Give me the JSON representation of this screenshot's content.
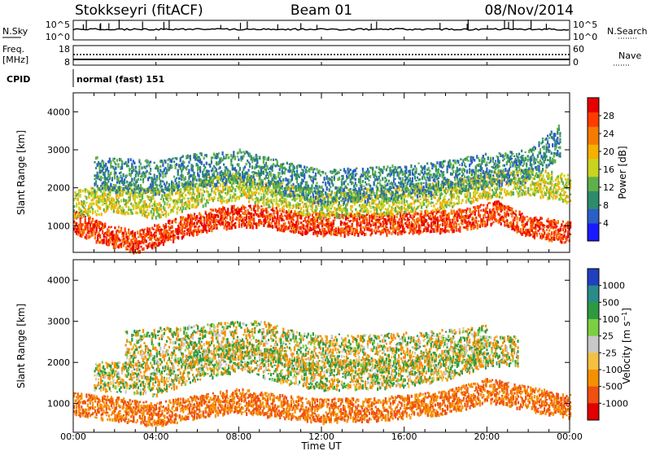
{
  "header": {
    "station": "Stokkseyri (fitACF)",
    "beam": "Beam 01",
    "date": "08/Nov/2014"
  },
  "top_panels": {
    "nsky_label": "N.Sky",
    "nsky_tick_top": "10^5",
    "nsky_tick_bottom": "10^0",
    "nsearch_label": "N.Search",
    "nsearch_tick_top": "10^5",
    "nsearch_tick_bottom": "10^0",
    "freq_label_line1": "Freq.",
    "freq_label_line2": "[MHz]",
    "freq_tick_top": "18",
    "freq_tick_bottom": "8",
    "nave_label": "Nave",
    "nave_tick_top": "60",
    "nave_tick_bottom": "0",
    "cpid_label": "CPID",
    "cpid_value": "normal (fast) 151"
  },
  "chart_data": [
    {
      "type": "heatmap",
      "name": "Power",
      "ylabel": "Slant Range [km]",
      "ylim": [
        300,
        4500
      ],
      "yticks": [
        1000,
        2000,
        3000,
        4000
      ],
      "xlim": [
        0,
        24
      ],
      "colorbar": {
        "label": "Power [dB]",
        "ticks": [
          4,
          8,
          12,
          16,
          20,
          24,
          28
        ],
        "range": [
          0,
          32
        ],
        "colors": [
          "#1a1aff",
          "#2a5fc8",
          "#2e8c6a",
          "#5fb04a",
          "#c8d420",
          "#f5b000",
          "#f57a00",
          "#ff3c00",
          "#e60000"
        ]
      },
      "echo_bands": [
        {
          "points": [
            [
              0.0,
              1150
            ],
            [
              1.5,
              800
            ],
            [
              3.0,
              600
            ],
            [
              5.0,
              950
            ],
            [
              7.0,
              1250
            ],
            [
              9.0,
              1300
            ],
            [
              11.0,
              1100
            ],
            [
              13.0,
              1050
            ],
            [
              16.0,
              1100
            ],
            [
              19.0,
              1200
            ],
            [
              20.5,
              1400
            ],
            [
              22.0,
              1000
            ],
            [
              24.0,
              850
            ]
          ],
          "power": 27
        },
        {
          "points": [
            [
              0.0,
              1600
            ],
            [
              2.0,
              1750
            ],
            [
              4.0,
              1600
            ],
            [
              6.0,
              1900
            ],
            [
              8.0,
              2100
            ],
            [
              10.0,
              1800
            ],
            [
              12.0,
              1600
            ],
            [
              14.0,
              1650
            ],
            [
              17.0,
              1750
            ],
            [
              20.0,
              2100
            ],
            [
              22.0,
              2200
            ],
            [
              24.0,
              2000
            ]
          ],
          "power": 16
        },
        {
          "points": [
            [
              1.0,
              2400
            ],
            [
              4.0,
              2300
            ],
            [
              6.0,
              2500
            ],
            [
              8.0,
              2600
            ],
            [
              10.0,
              2300
            ],
            [
              12.0,
              2050
            ],
            [
              15.0,
              2150
            ],
            [
              18.0,
              2300
            ],
            [
              20.0,
              2500
            ],
            [
              22.0,
              2600
            ],
            [
              23.5,
              3300
            ]
          ],
          "power": 9
        }
      ]
    },
    {
      "type": "heatmap",
      "name": "Velocity",
      "ylabel": "Slant Range [km]",
      "xlabel": "Time UT",
      "xticks": [
        "00:00",
        "04:00",
        "08:00",
        "12:00",
        "16:00",
        "20:00",
        "00:00"
      ],
      "ylim": [
        300,
        4500
      ],
      "yticks": [
        1000,
        2000,
        3000,
        4000
      ],
      "xlim": [
        0,
        24
      ],
      "colorbar": {
        "label": "Velocity [m s^-1]",
        "ticks": [
          "1000",
          "500",
          "100",
          "25",
          "-25",
          "-100",
          "-500",
          "-1000"
        ],
        "colors": [
          "#2040c0",
          "#2a8a8a",
          "#2e9a40",
          "#7ccf40",
          "#c8c8c8",
          "#f5c040",
          "#f59000",
          "#f05010",
          "#e00000"
        ]
      },
      "echo_bands": [
        {
          "points": [
            [
              0.0,
              1000
            ],
            [
              2.0,
              900
            ],
            [
              4.0,
              750
            ],
            [
              6.0,
              950
            ],
            [
              8.0,
              1100
            ],
            [
              10.0,
              950
            ],
            [
              12.0,
              850
            ],
            [
              15.0,
              900
            ],
            [
              18.0,
              1050
            ],
            [
              20.0,
              1350
            ],
            [
              22.0,
              1150
            ],
            [
              24.0,
              950
            ]
          ],
          "velocity": -300
        },
        {
          "points": [
            [
              1.0,
              1700
            ],
            [
              4.0,
              1600
            ],
            [
              6.0,
              1950
            ],
            [
              8.0,
              2200
            ],
            [
              10.0,
              1900
            ],
            [
              12.0,
              1700
            ],
            [
              15.0,
              1750
            ],
            [
              18.0,
              1950
            ],
            [
              20.0,
              2300
            ],
            [
              21.5,
              2300
            ]
          ],
          "velocity": 0
        },
        {
          "points": [
            [
              2.5,
              2400
            ],
            [
              5.0,
              2450
            ],
            [
              7.0,
              2550
            ],
            [
              9.0,
              2600
            ],
            [
              11.0,
              2300
            ],
            [
              14.0,
              2250
            ],
            [
              17.0,
              2350
            ],
            [
              20.0,
              2500
            ]
          ],
          "velocity": 0
        }
      ]
    }
  ]
}
